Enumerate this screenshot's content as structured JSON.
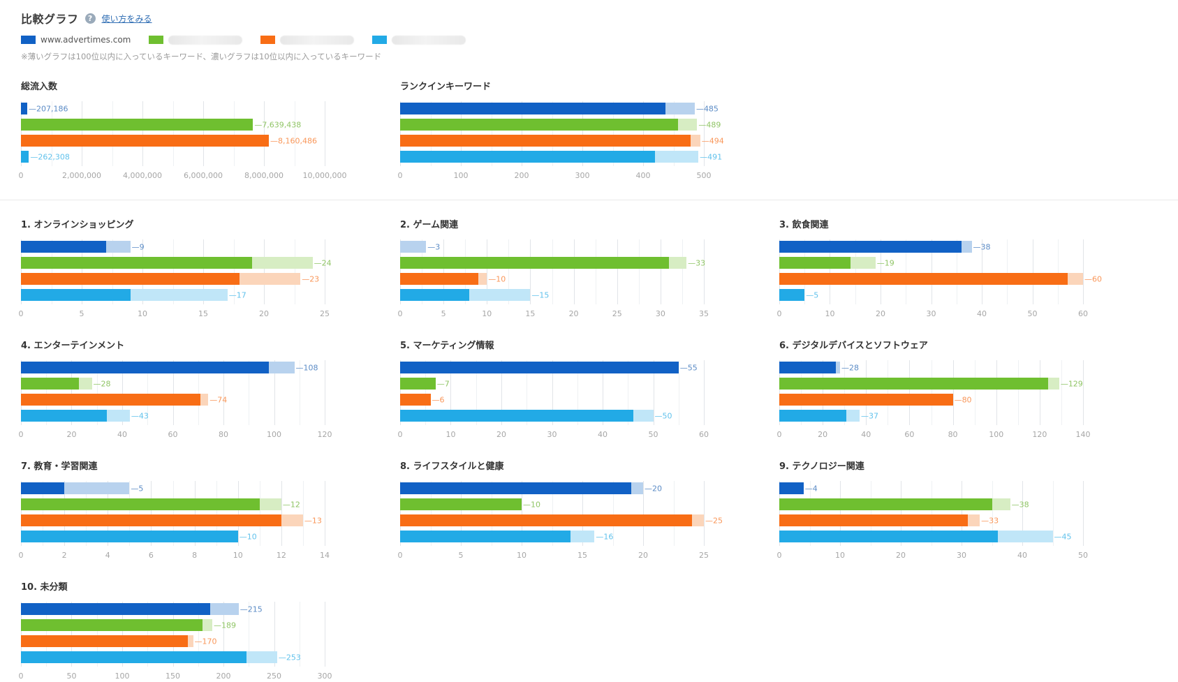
{
  "header": {
    "title": "比較グラフ",
    "help_link": "使い方をみる",
    "note": "※薄いグラフは100位以内に入っているキーワード、濃いグラフは10位以内に入っているキーワード"
  },
  "legend": {
    "items": [
      {
        "label": "www.advertimes.com",
        "color": "blue",
        "masked": false
      },
      {
        "label": "",
        "color": "green",
        "masked": true
      },
      {
        "label": "",
        "color": "orange",
        "masked": true
      },
      {
        "label": "",
        "color": "cyan",
        "masked": true
      }
    ]
  },
  "colors": {
    "blue": {
      "dark": "#1161c5",
      "light": "#b8d2ee",
      "label": "#5c8cc6"
    },
    "green": {
      "dark": "#6fbf30",
      "light": "#d7edc3",
      "label": "#90c566"
    },
    "orange": {
      "dark": "#f86d15",
      "light": "#fbd5ba",
      "label": "#f9975a"
    },
    "cyan": {
      "dark": "#22aae6",
      "light": "#c0e6f8",
      "label": "#62c2ec"
    }
  },
  "chart_data": [
    {
      "title": "総流入数",
      "type": "bar",
      "orientation": "horizontal",
      "section": "top",
      "xlim": [
        0,
        10000000
      ],
      "ticks": [
        0,
        2000000,
        4000000,
        6000000,
        8000000,
        10000000
      ],
      "tick_labels": [
        "0",
        "2,000,000",
        "4,000,000",
        "6,000,000",
        "8,000,000",
        "10,000,000"
      ],
      "series": [
        {
          "color": "blue",
          "top10": 207186,
          "top100": 207186,
          "label": "207,186"
        },
        {
          "color": "green",
          "top10": 7639438,
          "top100": 7639438,
          "label": "7,639,438"
        },
        {
          "color": "orange",
          "top10": 8160486,
          "top100": 8160486,
          "label": "8,160,486"
        },
        {
          "color": "cyan",
          "top10": 262308,
          "top100": 262308,
          "label": "262,308"
        }
      ]
    },
    {
      "title": "ランクインキーワード",
      "type": "bar",
      "orientation": "horizontal",
      "section": "top",
      "xlim": [
        0,
        500
      ],
      "ticks": [
        0,
        100,
        200,
        300,
        400,
        500
      ],
      "tick_labels": [
        "0",
        "100",
        "200",
        "300",
        "400",
        "500"
      ],
      "series": [
        {
          "color": "blue",
          "top10": 437,
          "top100": 485,
          "label": "485"
        },
        {
          "color": "green",
          "top10": 458,
          "top100": 489,
          "label": "489"
        },
        {
          "color": "orange",
          "top10": 478,
          "top100": 494,
          "label": "494"
        },
        {
          "color": "cyan",
          "top10": 420,
          "top100": 491,
          "label": "491"
        }
      ]
    },
    {
      "title": "1. オンラインショッピング",
      "type": "bar",
      "orientation": "horizontal",
      "section": "categories",
      "xlim": [
        0,
        25
      ],
      "ticks": [
        0,
        5,
        10,
        15,
        20,
        25
      ],
      "tick_labels": [
        "0",
        "5",
        "10",
        "15",
        "20",
        "25"
      ],
      "series": [
        {
          "color": "blue",
          "top10": 7,
          "top100": 9,
          "label": "9"
        },
        {
          "color": "green",
          "top10": 19,
          "top100": 24,
          "label": "24"
        },
        {
          "color": "orange",
          "top10": 18,
          "top100": 23,
          "label": "23"
        },
        {
          "color": "cyan",
          "top10": 9,
          "top100": 17,
          "label": "17"
        }
      ]
    },
    {
      "title": "2. ゲーム関連",
      "type": "bar",
      "orientation": "horizontal",
      "section": "categories",
      "xlim": [
        0,
        35
      ],
      "ticks": [
        0,
        5,
        10,
        15,
        20,
        25,
        30,
        35
      ],
      "tick_labels": [
        "0",
        "5",
        "10",
        "15",
        "20",
        "25",
        "30",
        "35"
      ],
      "series": [
        {
          "color": "blue",
          "top10": 0,
          "top100": 3,
          "label": "3"
        },
        {
          "color": "green",
          "top10": 31,
          "top100": 33,
          "label": "33"
        },
        {
          "color": "orange",
          "top10": 9,
          "top100": 10,
          "label": "10"
        },
        {
          "color": "cyan",
          "top10": 8,
          "top100": 15,
          "label": "15"
        }
      ]
    },
    {
      "title": "3. 飲食関連",
      "type": "bar",
      "orientation": "horizontal",
      "section": "categories",
      "xlim": [
        0,
        60
      ],
      "ticks": [
        0,
        10,
        20,
        30,
        40,
        50,
        60
      ],
      "tick_labels": [
        "0",
        "10",
        "20",
        "30",
        "40",
        "50",
        "60"
      ],
      "series": [
        {
          "color": "blue",
          "top10": 36,
          "top100": 38,
          "label": "38"
        },
        {
          "color": "green",
          "top10": 14,
          "top100": 19,
          "label": "19"
        },
        {
          "color": "orange",
          "top10": 57,
          "top100": 60,
          "label": "60"
        },
        {
          "color": "cyan",
          "top10": 5,
          "top100": 5,
          "label": "5"
        }
      ]
    },
    {
      "title": "4. エンターテインメント",
      "type": "bar",
      "orientation": "horizontal",
      "section": "categories",
      "xlim": [
        0,
        120
      ],
      "ticks": [
        0,
        20,
        40,
        60,
        80,
        100,
        120
      ],
      "tick_labels": [
        "0",
        "20",
        "40",
        "60",
        "80",
        "100",
        "120"
      ],
      "series": [
        {
          "color": "blue",
          "top10": 98,
          "top100": 108,
          "label": "108"
        },
        {
          "color": "green",
          "top10": 23,
          "top100": 28,
          "label": "28"
        },
        {
          "color": "orange",
          "top10": 71,
          "top100": 74,
          "label": "74"
        },
        {
          "color": "cyan",
          "top10": 34,
          "top100": 43,
          "label": "43"
        }
      ]
    },
    {
      "title": "5. マーケティング情報",
      "type": "bar",
      "orientation": "horizontal",
      "section": "categories",
      "xlim": [
        0,
        60
      ],
      "ticks": [
        0,
        10,
        20,
        30,
        40,
        50,
        60
      ],
      "tick_labels": [
        "0",
        "10",
        "20",
        "30",
        "40",
        "50",
        "60"
      ],
      "series": [
        {
          "color": "blue",
          "top10": 55,
          "top100": 55,
          "label": "55"
        },
        {
          "color": "green",
          "top10": 7,
          "top100": 7,
          "label": "7"
        },
        {
          "color": "orange",
          "top10": 6,
          "top100": 6,
          "label": "6"
        },
        {
          "color": "cyan",
          "top10": 46,
          "top100": 50,
          "label": "50"
        }
      ]
    },
    {
      "title": "6. デジタルデバイスとソフトウェア",
      "type": "bar",
      "orientation": "horizontal",
      "section": "categories",
      "xlim": [
        0,
        140
      ],
      "ticks": [
        0,
        20,
        40,
        60,
        80,
        100,
        120,
        140
      ],
      "tick_labels": [
        "0",
        "20",
        "40",
        "60",
        "80",
        "100",
        "120",
        "140"
      ],
      "series": [
        {
          "color": "blue",
          "top10": 26,
          "top100": 28,
          "label": "28"
        },
        {
          "color": "green",
          "top10": 124,
          "top100": 129,
          "label": "129"
        },
        {
          "color": "orange",
          "top10": 80,
          "top100": 80,
          "label": "80"
        },
        {
          "color": "cyan",
          "top10": 31,
          "top100": 37,
          "label": "37"
        }
      ]
    },
    {
      "title": "7. 教育・学習関連",
      "type": "bar",
      "orientation": "horizontal",
      "section": "categories",
      "xlim": [
        0,
        14
      ],
      "ticks": [
        0,
        2,
        4,
        6,
        8,
        10,
        12,
        14
      ],
      "tick_labels": [
        "0",
        "2",
        "4",
        "6",
        "8",
        "10",
        "12",
        "14"
      ],
      "series": [
        {
          "color": "blue",
          "top10": 2,
          "top100": 5,
          "label": "5"
        },
        {
          "color": "green",
          "top10": 11,
          "top100": 12,
          "label": "12"
        },
        {
          "color": "orange",
          "top10": 12,
          "top100": 13,
          "label": "13"
        },
        {
          "color": "cyan",
          "top10": 10,
          "top100": 10,
          "label": "10"
        }
      ]
    },
    {
      "title": "8. ライフスタイルと健康",
      "type": "bar",
      "orientation": "horizontal",
      "section": "categories",
      "xlim": [
        0,
        25
      ],
      "ticks": [
        0,
        5,
        10,
        15,
        20,
        25
      ],
      "tick_labels": [
        "0",
        "5",
        "10",
        "15",
        "20",
        "25"
      ],
      "series": [
        {
          "color": "blue",
          "top10": 19,
          "top100": 20,
          "label": "20"
        },
        {
          "color": "green",
          "top10": 10,
          "top100": 10,
          "label": "10"
        },
        {
          "color": "orange",
          "top10": 24,
          "top100": 25,
          "label": "25"
        },
        {
          "color": "cyan",
          "top10": 14,
          "top100": 16,
          "label": "16"
        }
      ]
    },
    {
      "title": "9. テクノロジー関連",
      "type": "bar",
      "orientation": "horizontal",
      "section": "categories",
      "xlim": [
        0,
        50
      ],
      "ticks": [
        0,
        10,
        20,
        30,
        40,
        50
      ],
      "tick_labels": [
        "0",
        "10",
        "20",
        "30",
        "40",
        "50"
      ],
      "series": [
        {
          "color": "blue",
          "top10": 4,
          "top100": 4,
          "label": "4"
        },
        {
          "color": "green",
          "top10": 35,
          "top100": 38,
          "label": "38"
        },
        {
          "color": "orange",
          "top10": 31,
          "top100": 33,
          "label": "33"
        },
        {
          "color": "cyan",
          "top10": 36,
          "top100": 45,
          "label": "45"
        }
      ]
    },
    {
      "title": "10. 未分類",
      "type": "bar",
      "orientation": "horizontal",
      "section": "categories",
      "xlim": [
        0,
        300
      ],
      "ticks": [
        0,
        50,
        100,
        150,
        200,
        250,
        300
      ],
      "tick_labels": [
        "0",
        "50",
        "100",
        "150",
        "200",
        "250",
        "300"
      ],
      "series": [
        {
          "color": "blue",
          "top10": 187,
          "top100": 215,
          "label": "215"
        },
        {
          "color": "green",
          "top10": 179,
          "top100": 189,
          "label": "189"
        },
        {
          "color": "orange",
          "top10": 165,
          "top100": 170,
          "label": "170"
        },
        {
          "color": "cyan",
          "top10": 223,
          "top100": 253,
          "label": "253"
        }
      ]
    }
  ]
}
